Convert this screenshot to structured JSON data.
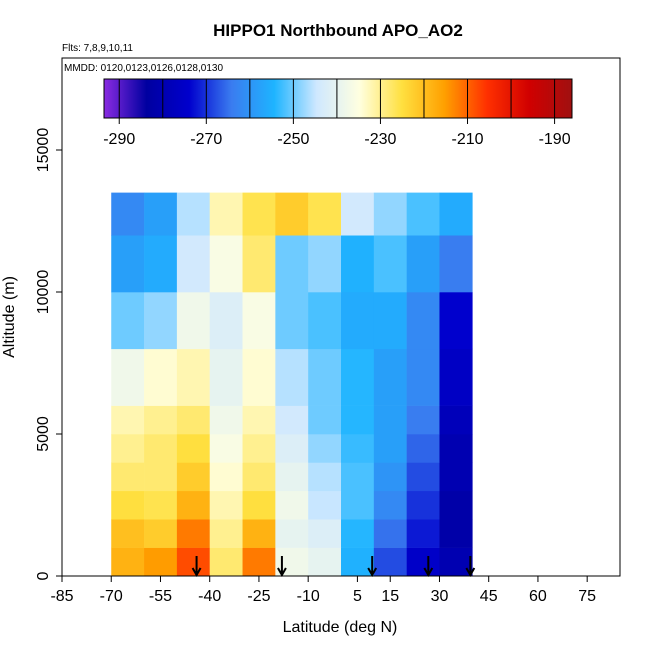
{
  "chart_data": {
    "type": "heatmap",
    "title": "HIPPO1 Northbound APO_AO2",
    "subtitle": "Flts: 7,8,9,10,11",
    "annotation": "MMDD: 0120,0123,0126,0128,0130",
    "x_label": "Latitude (deg N)",
    "y_label": "Altitude (m)",
    "xlim": [
      -85,
      85
    ],
    "ylim": [
      0,
      18240
    ],
    "xticks": [
      -85,
      -70,
      -55,
      -40,
      -25,
      -10,
      5,
      15,
      30,
      45,
      60,
      75
    ],
    "yticks": [
      0,
      5000,
      10000,
      15000
    ],
    "clim": [
      -293.5,
      -186
    ],
    "cticks": [
      -290,
      -270,
      -250,
      -230,
      -210,
      -190
    ],
    "colormap": [
      "#8a2be2",
      "#0000a0",
      "#0000cd",
      "#3a7cf0",
      "#1eb4ff",
      "#cfe8ff",
      "#ffffe0",
      "#ffe040",
      "#ffa000",
      "#ff3000",
      "#d00000",
      "#a01010"
    ],
    "lat_edges": [
      -70,
      -60,
      -50,
      -40,
      -30,
      -20,
      -10,
      0,
      10,
      20,
      30,
      40
    ],
    "alt_edges": [
      0,
      1000,
      2000,
      3000,
      4000,
      5000,
      6000,
      8000,
      10000,
      12000,
      13500
    ],
    "z": [
      [
        -218,
        -215,
        -208,
        -228,
        -212,
        -238,
        -240,
        -255,
        -268,
        -275,
        -280
      ],
      [
        -220,
        -222,
        -212,
        -230,
        -218,
        -240,
        -242,
        -254,
        -265,
        -272,
        -282
      ],
      [
        -225,
        -226,
        -218,
        -232,
        -225,
        -238,
        -245,
        -252,
        -262,
        -270,
        -282
      ],
      [
        -228,
        -228,
        -222,
        -234,
        -228,
        -240,
        -246,
        -252,
        -260,
        -268,
        -280
      ],
      [
        -230,
        -228,
        -225,
        -236,
        -230,
        -242,
        -248,
        -253,
        -258,
        -266,
        -280
      ],
      [
        -232,
        -230,
        -228,
        -238,
        -232,
        -244,
        -250,
        -254,
        -258,
        -264,
        -278
      ],
      [
        -238,
        -234,
        -232,
        -240,
        -234,
        -246,
        -250,
        -254,
        -258,
        -262,
        -276
      ],
      [
        -250,
        -248,
        -238,
        -242,
        -236,
        -250,
        -252,
        -256,
        -256,
        -262,
        -274
      ],
      [
        -258,
        -256,
        -244,
        -236,
        -228,
        -250,
        -248,
        -255,
        -252,
        -258,
        -264
      ],
      [
        -262,
        -258,
        -246,
        -232,
        -226,
        -222,
        -226,
        -244,
        -248,
        -252,
        -256
      ]
    ],
    "arrows_lat": [
      -44,
      -18,
      9.5,
      26.6,
      39.4
    ]
  }
}
